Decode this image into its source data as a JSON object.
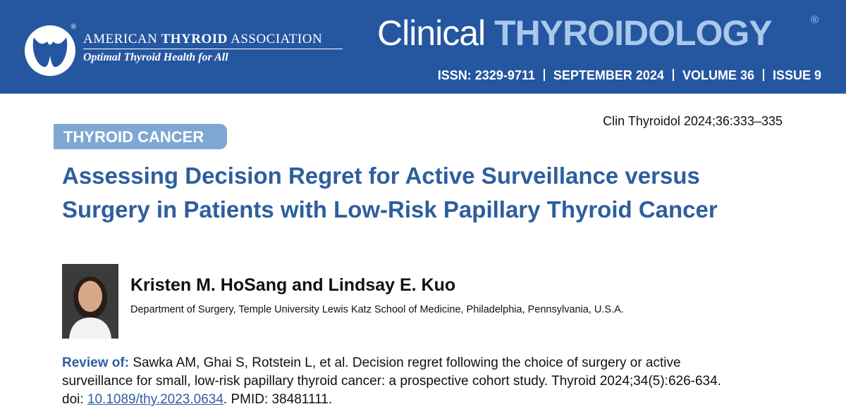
{
  "header": {
    "org_name": [
      "AMERICAN",
      "THYROID",
      "ASSOCIATION"
    ],
    "org_mark": "®",
    "tagline": "Optimal Thyroid Health for All",
    "journal": [
      "Clinical",
      "THYROIDOLOGY"
    ],
    "journal_mark": "®",
    "issue_info": [
      "ISSN: 2329-9711",
      "SEPTEMBER 2024",
      "VOLUME 36",
      "ISSUE 9"
    ]
  },
  "citation": "Clin Thyroidol 2024;36:333–335",
  "section": "THYROID CANCER",
  "title": "Assessing Decision Regret for Active Surveillance versus Surgery in Patients with Low-Risk Papillary Thyroid Cancer",
  "authors": "Kristen M. HoSang and Lindsay E. Kuo",
  "affiliation": "Department of Surgery, Temple University Lewis Katz School of Medicine, Philadelphia, Pennsylvania, U.S.A.",
  "review": {
    "label": "Review of:",
    "text": "Sawka AM, Ghai S, Rotstein L, et al. Decision regret following the choice of surgery or active surveillance for small, low-risk papillary thyroid cancer: a prospective cohort study. Thyroid 2024;34(5):626-634. doi:",
    "doi": "10.1089/thy.2023.0634",
    "pmid": ". PMID: 38481111."
  }
}
